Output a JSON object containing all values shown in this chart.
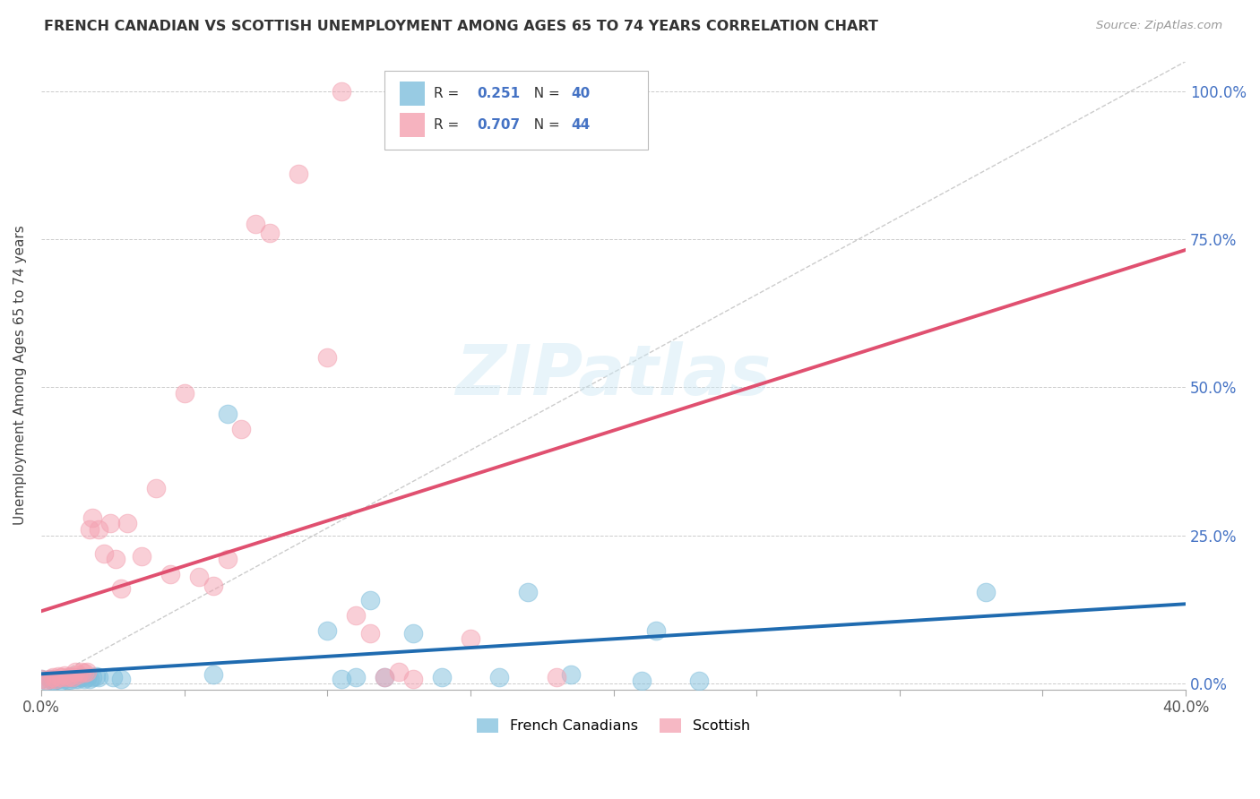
{
  "title": "FRENCH CANADIAN VS SCOTTISH UNEMPLOYMENT AMONG AGES 65 TO 74 YEARS CORRELATION CHART",
  "source": "Source: ZipAtlas.com",
  "ylabel": "Unemployment Among Ages 65 to 74 years",
  "xlim": [
    0.0,
    0.4
  ],
  "ylim": [
    -0.01,
    1.05
  ],
  "yticks": [
    0.0,
    0.25,
    0.5,
    0.75,
    1.0
  ],
  "ytick_labels": [
    "0.0%",
    "25.0%",
    "50.0%",
    "75.0%",
    "100.0%"
  ],
  "xticks": [
    0.0,
    0.05,
    0.1,
    0.15,
    0.2,
    0.25,
    0.3,
    0.35,
    0.4
  ],
  "xtick_labels": [
    "0.0%",
    "",
    "",
    "",
    "",
    "",
    "",
    "",
    "40.0%"
  ],
  "french_R": 0.251,
  "french_N": 40,
  "scottish_R": 0.707,
  "scottish_N": 44,
  "french_color": "#7fbfdd",
  "scottish_color": "#f4a0b0",
  "french_line_color": "#1f6bb0",
  "scottish_line_color": "#e05070",
  "legend_label_french": "French Canadians",
  "legend_label_scottish": "Scottish",
  "french_x": [
    0.0,
    0.002,
    0.003,
    0.004,
    0.005,
    0.006,
    0.007,
    0.008,
    0.009,
    0.01,
    0.01,
    0.011,
    0.012,
    0.012,
    0.013,
    0.014,
    0.015,
    0.016,
    0.017,
    0.018,
    0.019,
    0.02,
    0.025,
    0.028,
    0.06,
    0.065,
    0.1,
    0.105,
    0.11,
    0.115,
    0.12,
    0.13,
    0.14,
    0.16,
    0.17,
    0.185,
    0.21,
    0.215,
    0.23,
    0.33
  ],
  "french_y": [
    0.008,
    0.005,
    0.008,
    0.004,
    0.006,
    0.008,
    0.005,
    0.008,
    0.006,
    0.01,
    0.006,
    0.01,
    0.007,
    0.01,
    0.008,
    0.01,
    0.007,
    0.01,
    0.008,
    0.01,
    0.012,
    0.01,
    0.01,
    0.008,
    0.015,
    0.455,
    0.09,
    0.008,
    0.01,
    0.14,
    0.01,
    0.085,
    0.01,
    0.01,
    0.155,
    0.015,
    0.005,
    0.09,
    0.005,
    0.155
  ],
  "scottish_x": [
    0.0,
    0.002,
    0.003,
    0.004,
    0.005,
    0.006,
    0.007,
    0.008,
    0.009,
    0.01,
    0.011,
    0.012,
    0.013,
    0.014,
    0.015,
    0.016,
    0.017,
    0.018,
    0.02,
    0.022,
    0.024,
    0.026,
    0.028,
    0.03,
    0.035,
    0.04,
    0.045,
    0.05,
    0.055,
    0.06,
    0.065,
    0.07,
    0.075,
    0.08,
    0.09,
    0.1,
    0.105,
    0.11,
    0.115,
    0.12,
    0.125,
    0.13,
    0.15,
    0.18
  ],
  "scottish_y": [
    0.008,
    0.006,
    0.008,
    0.01,
    0.008,
    0.012,
    0.01,
    0.014,
    0.01,
    0.012,
    0.01,
    0.02,
    0.015,
    0.02,
    0.018,
    0.02,
    0.26,
    0.28,
    0.26,
    0.22,
    0.27,
    0.21,
    0.16,
    0.27,
    0.215,
    0.33,
    0.185,
    0.49,
    0.18,
    0.165,
    0.21,
    0.43,
    0.775,
    0.76,
    0.86,
    0.55,
    1.0,
    0.115,
    0.085,
    0.01,
    0.02,
    0.008,
    0.075,
    0.01
  ]
}
